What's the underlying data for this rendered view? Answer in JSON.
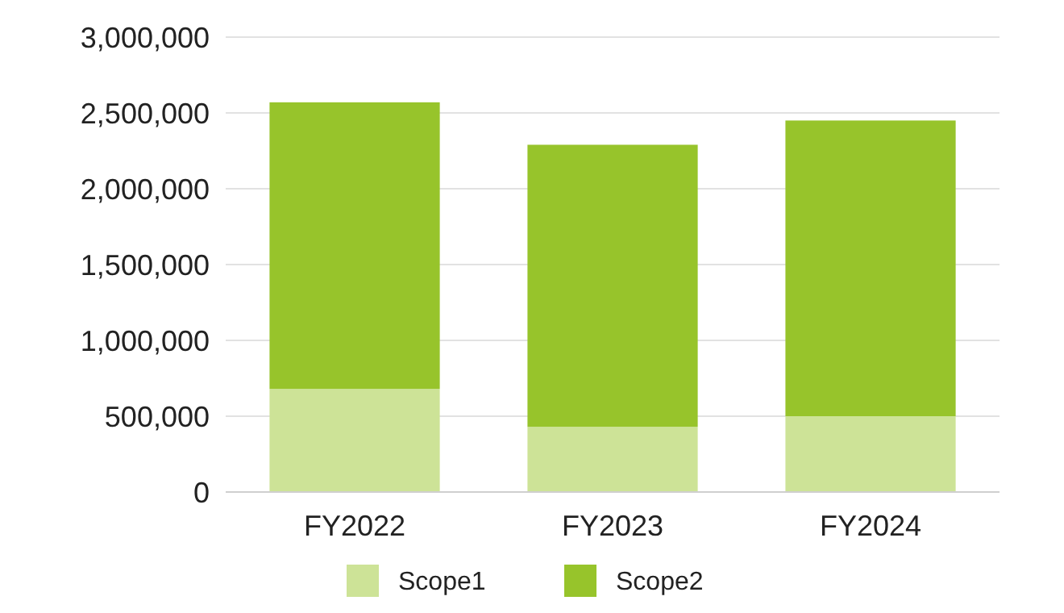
{
  "chart_data": {
    "type": "bar",
    "stacked": true,
    "categories": [
      "FY2022",
      "FY2023",
      "FY2024"
    ],
    "series": [
      {
        "name": "Scope1",
        "color": "#cde397",
        "values": [
          680000,
          430000,
          500000
        ]
      },
      {
        "name": "Scope2",
        "color": "#97c42b",
        "values": [
          1890000,
          1860000,
          1950000
        ]
      }
    ],
    "ylim": [
      0,
      3000000
    ],
    "yticks": [
      {
        "value": 0,
        "label": "0"
      },
      {
        "value": 500000,
        "label": "500,000"
      },
      {
        "value": 1000000,
        "label": "1,000,000"
      },
      {
        "value": 1500000,
        "label": "1,500,000"
      },
      {
        "value": 2000000,
        "label": "2,000,000"
      },
      {
        "value": 2500000,
        "label": "2,500,000"
      },
      {
        "value": 3000000,
        "label": "3,000,000"
      }
    ],
    "grid": "y",
    "legend": "bottom"
  }
}
